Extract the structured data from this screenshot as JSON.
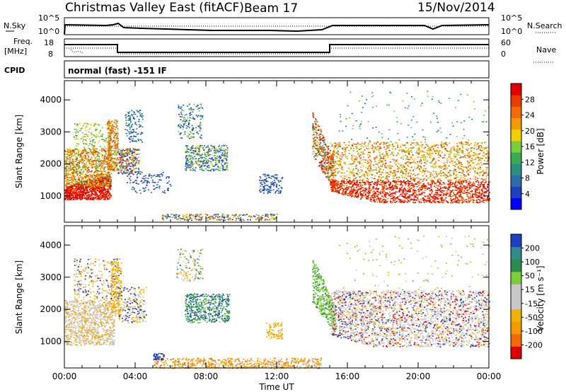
{
  "header": {
    "title": "Christmas Valley East (fitACF)",
    "beam": "Beam 17",
    "date": "15/Nov/2014"
  },
  "panels": {
    "nsky_label": "N.Sky",
    "nsearch_label": "N.Search",
    "freq_label_1": "Freq.",
    "freq_label_2": "[MHz]",
    "nave_label": "Nave",
    "cpid_label": "CPID",
    "cpid_text": "normal (fast) -151 IF",
    "nsky_ticks": [
      "10^5",
      "10^0"
    ],
    "nsearch_ticks": [
      "10^5",
      "10^0"
    ],
    "freq_ticks": [
      "18",
      "8"
    ],
    "nave_ticks": [
      "60",
      "0"
    ]
  },
  "colors": {
    "power": [
      "#0000ff",
      "#1e3fbf",
      "#2e6ea6",
      "#2f8f7f",
      "#3aaa55",
      "#7dcc3a",
      "#f0d000",
      "#f59a00",
      "#f26a00",
      "#ea3a00",
      "#e00000"
    ],
    "velocity": [
      "#e00000",
      "#f26a00",
      "#f59a00",
      "#f0b400",
      "#c8c8c8",
      "#c8c8c8",
      "#7dcc3a",
      "#2e8a4f",
      "#2f8a8a",
      "#1e3fbf"
    ]
  },
  "chart_data": [
    {
      "type": "heatmap",
      "name": "power",
      "xlabel": "",
      "ylabel": "Slant Range [km]",
      "x_range_hours": [
        0,
        24
      ],
      "ylim": [
        180,
        4600
      ],
      "yticks": [
        1000,
        2000,
        3000,
        4000
      ],
      "colorbar_label": "Power [dB]",
      "colorbar_ticks": [
        "4",
        "8",
        "12",
        "16",
        "20",
        "24",
        "28"
      ],
      "clim": [
        0,
        30
      ]
    },
    {
      "type": "heatmap",
      "name": "velocity",
      "xlabel": "Time UT",
      "ylabel": "Slant Range [km]",
      "x_range_hours": [
        0,
        24
      ],
      "ylim": [
        180,
        4600
      ],
      "yticks": [
        1000,
        2000,
        3000,
        4000
      ],
      "xticks": [
        "00:00",
        "04:00",
        "08:00",
        "12:00",
        "16:00",
        "20:00",
        "00:00"
      ],
      "colorbar_label": "Velocity [m s⁻¹]",
      "colorbar_ticks": [
        "200",
        "100",
        "50",
        "15",
        "-15",
        "-50",
        "-100",
        "-200"
      ],
      "clim": [
        -250,
        250
      ]
    }
  ]
}
